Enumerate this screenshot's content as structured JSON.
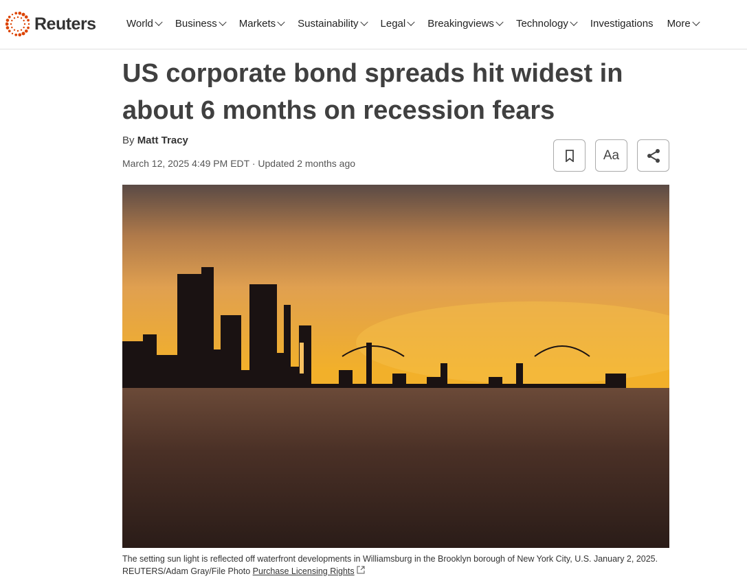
{
  "brand": {
    "name": "Reuters",
    "color": "#dc4300"
  },
  "nav": {
    "items": [
      {
        "label": "World",
        "dropdown": true
      },
      {
        "label": "Business",
        "dropdown": true
      },
      {
        "label": "Markets",
        "dropdown": true
      },
      {
        "label": "Sustainability",
        "dropdown": true
      },
      {
        "label": "Legal",
        "dropdown": true
      },
      {
        "label": "Breakingviews",
        "dropdown": true
      },
      {
        "label": "Technology",
        "dropdown": true
      },
      {
        "label": "Investigations",
        "dropdown": false
      },
      {
        "label": "More",
        "dropdown": true
      }
    ]
  },
  "article": {
    "title": "US corporate bond spreads hit widest in about 6 months on recession fears",
    "by": "By",
    "author": "Matt Tracy",
    "date": "March 12, 2025 4:49 PM EDT · Updated 2 months ago"
  },
  "tools": {
    "bookmark": "bookmark-icon",
    "text_size": "Aa",
    "share": "share-icon"
  },
  "photo": {
    "caption": "The setting sun light is reflected off waterfront developments in Williamsburg in the Brooklyn borough of New York City, U.S. January 2, 2025.",
    "credit": "REUTERS/Adam Gray/File Photo",
    "license_link": "Purchase Licensing Rights"
  }
}
